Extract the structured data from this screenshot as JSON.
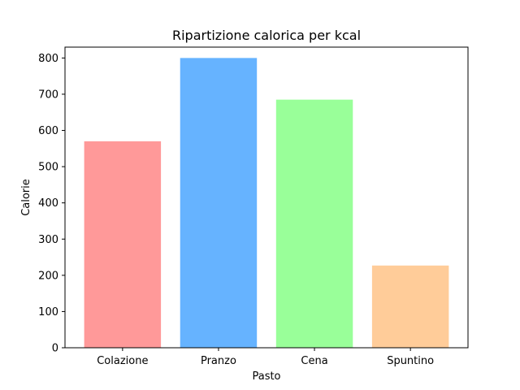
{
  "chart_data": {
    "type": "bar",
    "title": "Ripartizione calorica per kcal",
    "xlabel": "Pasto",
    "ylabel": "Calorie",
    "categories": [
      "Colazione",
      "Pranzo",
      "Cena",
      "Spuntino"
    ],
    "values": [
      570,
      800,
      685,
      227
    ],
    "colors": [
      "#ff9999",
      "#66b3ff",
      "#99ff99",
      "#ffcc99"
    ],
    "ylim": [
      0,
      830
    ],
    "yticks": [
      0,
      100,
      200,
      300,
      400,
      500,
      600,
      700,
      800
    ],
    "grid": false,
    "legend": "none"
  }
}
